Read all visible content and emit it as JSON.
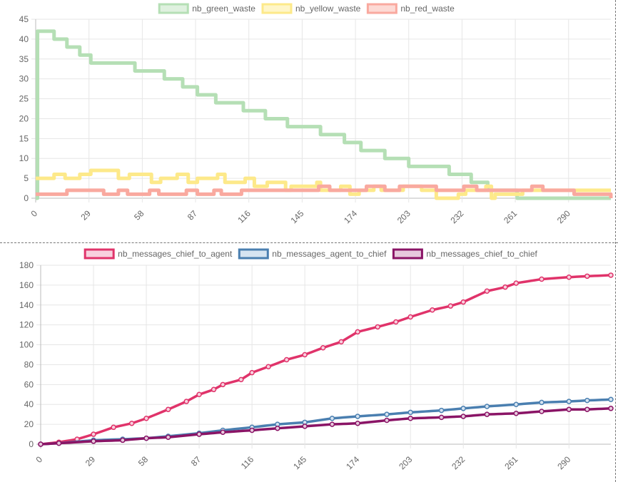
{
  "chart_data": [
    {
      "type": "line",
      "title": "",
      "xlabel": "",
      "ylabel": "",
      "xlim": [
        0,
        313
      ],
      "ylim": [
        0,
        45
      ],
      "x_ticks": [
        0,
        29,
        58,
        87,
        116,
        145,
        174,
        203,
        232,
        261,
        290
      ],
      "y_ticks": [
        0,
        5,
        10,
        15,
        20,
        25,
        30,
        35,
        40,
        45
      ],
      "grid": true,
      "legend_position": "top",
      "series": [
        {
          "name": "nb_green_waste",
          "stroke": "#b5dfb5",
          "fill": "#dff1df",
          "steps": [
            [
              0,
              0
            ],
            [
              1,
              42
            ],
            [
              10,
              40
            ],
            [
              17,
              38
            ],
            [
              24,
              36
            ],
            [
              30,
              34
            ],
            [
              54,
              32
            ],
            [
              70,
              30
            ],
            [
              80,
              28
            ],
            [
              88,
              26
            ],
            [
              98,
              24
            ],
            [
              113,
              22
            ],
            [
              125,
              20
            ],
            [
              137,
              18
            ],
            [
              155,
              16
            ],
            [
              168,
              14
            ],
            [
              177,
              12
            ],
            [
              190,
              10
            ],
            [
              203,
              8
            ],
            [
              225,
              6
            ],
            [
              237,
              4
            ],
            [
              246,
              2
            ],
            [
              262,
              0
            ],
            [
              313,
              0
            ]
          ]
        },
        {
          "name": "nb_yellow_waste",
          "stroke": "#fde98a",
          "fill": "#fff6c8",
          "steps": [
            [
              0,
              5
            ],
            [
              10,
              6
            ],
            [
              16,
              5
            ],
            [
              24,
              6
            ],
            [
              30,
              7
            ],
            [
              45,
              5
            ],
            [
              51,
              6
            ],
            [
              63,
              4
            ],
            [
              68,
              5
            ],
            [
              77,
              6
            ],
            [
              83,
              4
            ],
            [
              88,
              5
            ],
            [
              99,
              6
            ],
            [
              103,
              4
            ],
            [
              114,
              5
            ],
            [
              119,
              3
            ],
            [
              126,
              4
            ],
            [
              136,
              2
            ],
            [
              139,
              3
            ],
            [
              153,
              4
            ],
            [
              155,
              2
            ],
            [
              166,
              3
            ],
            [
              171,
              1
            ],
            [
              176,
              2
            ],
            [
              184,
              3
            ],
            [
              188,
              2
            ],
            [
              200,
              3
            ],
            [
              210,
              2
            ],
            [
              218,
              0
            ],
            [
              230,
              1
            ],
            [
              234,
              2
            ],
            [
              245,
              3
            ],
            [
              248,
              0
            ],
            [
              250,
              1
            ],
            [
              265,
              2
            ],
            [
              278,
              2
            ],
            [
              313,
              2
            ]
          ]
        },
        {
          "name": "nb_red_waste",
          "stroke": "#f9a99f",
          "fill": "#fddad5",
          "steps": [
            [
              0,
              1
            ],
            [
              17,
              2
            ],
            [
              37,
              1
            ],
            [
              45,
              2
            ],
            [
              50,
              1
            ],
            [
              62,
              2
            ],
            [
              67,
              1
            ],
            [
              82,
              2
            ],
            [
              88,
              1
            ],
            [
              97,
              2
            ],
            [
              101,
              1
            ],
            [
              112,
              2
            ],
            [
              136,
              2
            ],
            [
              154,
              3
            ],
            [
              160,
              2
            ],
            [
              180,
              3
            ],
            [
              190,
              2
            ],
            [
              198,
              3
            ],
            [
              218,
              2
            ],
            [
              233,
              3
            ],
            [
              240,
              2
            ],
            [
              270,
              3
            ],
            [
              276,
              2
            ],
            [
              293,
              1
            ],
            [
              313,
              0
            ]
          ]
        }
      ]
    },
    {
      "type": "line",
      "title": "",
      "xlabel": "",
      "ylabel": "",
      "xlim": [
        0,
        313
      ],
      "ylim": [
        0,
        180
      ],
      "x_ticks": [
        0,
        29,
        58,
        87,
        116,
        145,
        174,
        203,
        232,
        261,
        290
      ],
      "y_ticks": [
        0,
        20,
        40,
        60,
        80,
        100,
        120,
        140,
        160,
        180
      ],
      "grid": true,
      "legend_position": "top",
      "series": [
        {
          "name": "nb_messages_chief_to_agent",
          "stroke": "#e0336a",
          "fill": "#f8d0de",
          "points": [
            [
              0,
              0
            ],
            [
              10,
              2
            ],
            [
              20,
              5
            ],
            [
              29,
              10
            ],
            [
              40,
              17
            ],
            [
              50,
              21
            ],
            [
              58,
              26
            ],
            [
              70,
              35
            ],
            [
              80,
              43
            ],
            [
              87,
              50
            ],
            [
              95,
              55
            ],
            [
              100,
              60
            ],
            [
              110,
              65
            ],
            [
              116,
              72
            ],
            [
              125,
              78
            ],
            [
              135,
              85
            ],
            [
              145,
              90
            ],
            [
              155,
              97
            ],
            [
              165,
              103
            ],
            [
              174,
              113
            ],
            [
              185,
              118
            ],
            [
              195,
              123
            ],
            [
              203,
              128
            ],
            [
              215,
              135
            ],
            [
              225,
              139
            ],
            [
              232,
              143
            ],
            [
              245,
              154
            ],
            [
              255,
              158
            ],
            [
              261,
              162
            ],
            [
              275,
              166
            ],
            [
              290,
              168
            ],
            [
              300,
              169
            ],
            [
              313,
              170
            ]
          ]
        },
        {
          "name": "nb_messages_agent_to_chief",
          "stroke": "#4a7fb0",
          "fill": "#d6e4f1",
          "points": [
            [
              0,
              0
            ],
            [
              10,
              1
            ],
            [
              29,
              4
            ],
            [
              45,
              5
            ],
            [
              58,
              6
            ],
            [
              70,
              8
            ],
            [
              87,
              11
            ],
            [
              100,
              14
            ],
            [
              116,
              17
            ],
            [
              130,
              20
            ],
            [
              145,
              22
            ],
            [
              160,
              26
            ],
            [
              174,
              28
            ],
            [
              190,
              30
            ],
            [
              203,
              32
            ],
            [
              220,
              34
            ],
            [
              232,
              36
            ],
            [
              245,
              38
            ],
            [
              261,
              40
            ],
            [
              275,
              42
            ],
            [
              290,
              43
            ],
            [
              300,
              44
            ],
            [
              313,
              45
            ]
          ]
        },
        {
          "name": "nb_messages_chief_to_chief",
          "stroke": "#8a1466",
          "fill": "#e7c9dd",
          "points": [
            [
              0,
              0
            ],
            [
              10,
              1
            ],
            [
              29,
              3
            ],
            [
              45,
              4
            ],
            [
              58,
              6
            ],
            [
              70,
              7
            ],
            [
              87,
              10
            ],
            [
              100,
              12
            ],
            [
              116,
              14
            ],
            [
              130,
              16
            ],
            [
              145,
              18
            ],
            [
              160,
              20
            ],
            [
              174,
              21
            ],
            [
              190,
              24
            ],
            [
              203,
              26
            ],
            [
              220,
              27
            ],
            [
              232,
              28
            ],
            [
              245,
              30
            ],
            [
              261,
              31
            ],
            [
              275,
              33
            ],
            [
              290,
              35
            ],
            [
              300,
              35
            ],
            [
              313,
              36
            ]
          ]
        }
      ]
    }
  ]
}
